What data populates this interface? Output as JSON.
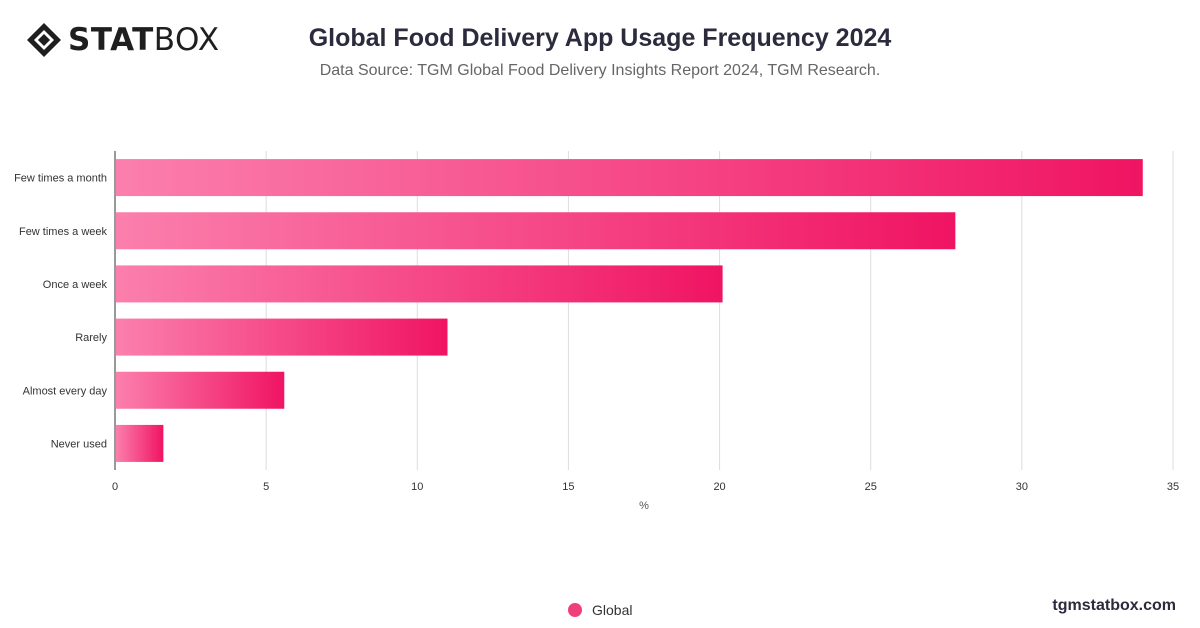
{
  "brand": {
    "logo_bold": "STAT",
    "logo_light": "BOX",
    "site": "tgmstatbox.com"
  },
  "colors": {
    "bar_start": "#fb7fac",
    "bar_end": "#f01463",
    "legend": "#f0407a",
    "grid": "#dddddd"
  },
  "chart_data": {
    "type": "bar",
    "orientation": "horizontal",
    "title": "Global Food Delivery App Usage Frequency 2024",
    "subtitle": "Data Source: TGM Global Food Delivery Insights Report 2024, TGM Research.",
    "categories": [
      "Few times a month",
      "Few times a week",
      "Once a week",
      "Rarely",
      "Almost every day",
      "Never used"
    ],
    "series": [
      {
        "name": "Global",
        "values": [
          34.0,
          27.8,
          20.1,
          11.0,
          5.6,
          1.6
        ]
      }
    ],
    "xlabel": "%",
    "xlim": [
      0,
      35
    ],
    "xticks": [
      "0",
      "5",
      "10",
      "15",
      "20",
      "25",
      "30",
      "35"
    ],
    "grid": true,
    "legend_position": "bottom"
  }
}
